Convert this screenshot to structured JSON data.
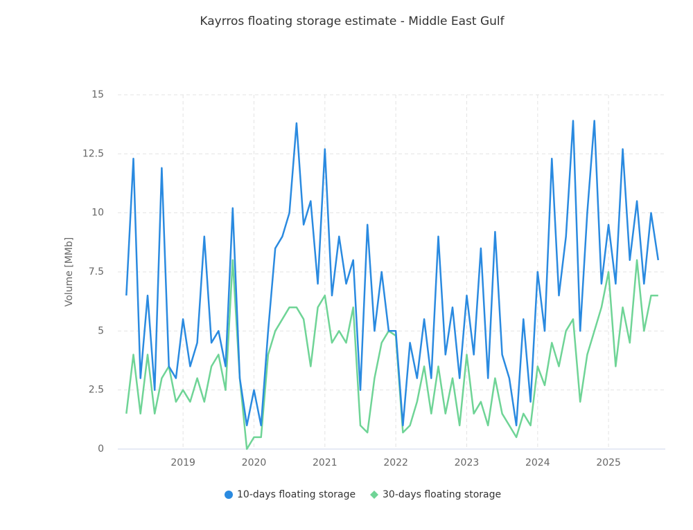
{
  "chart_data": {
    "type": "line",
    "title": "Kayrros floating storage estimate - Middle East Gulf",
    "ylabel": "Volume [MMb]",
    "x": [
      2018.2,
      2018.3,
      2018.4,
      2018.5,
      2018.6,
      2018.7,
      2018.8,
      2018.9,
      2019.0,
      2019.1,
      2019.2,
      2019.3,
      2019.4,
      2019.5,
      2019.6,
      2019.7,
      2019.8,
      2019.9,
      2020.0,
      2020.1,
      2020.2,
      2020.3,
      2020.4,
      2020.5,
      2020.6,
      2020.7,
      2020.8,
      2020.9,
      2021.0,
      2021.1,
      2021.2,
      2021.3,
      2021.4,
      2021.5,
      2021.6,
      2021.7,
      2021.8,
      2021.9,
      2022.0,
      2022.1,
      2022.2,
      2022.3,
      2022.4,
      2022.5,
      2022.6,
      2022.7,
      2022.8,
      2022.9,
      2023.0,
      2023.1,
      2023.2,
      2023.3,
      2023.4,
      2023.5,
      2023.6,
      2023.7,
      2023.8,
      2023.9,
      2024.0,
      2024.1,
      2024.2,
      2024.3,
      2024.4,
      2024.5,
      2024.6,
      2024.7,
      2024.8,
      2024.9,
      2025.0,
      2025.1,
      2025.2,
      2025.3,
      2025.4,
      2025.5,
      2025.6,
      2025.7
    ],
    "series": [
      {
        "name": "10-days floating storage",
        "color": "#2a8ae0",
        "marker": "circle",
        "values": [
          6.5,
          12.3,
          3,
          6.5,
          2.5,
          11.9,
          3.5,
          3,
          5.5,
          3.5,
          4.5,
          9.0,
          4.5,
          5,
          3.5,
          10.2,
          3,
          1,
          2.5,
          1,
          5,
          8.5,
          9,
          10,
          13.8,
          9.5,
          10.5,
          7,
          12.7,
          6.5,
          9,
          7,
          8,
          2.5,
          9.5,
          5,
          7.5,
          5,
          5,
          1,
          4.5,
          3,
          5.5,
          3,
          9,
          4,
          6,
          3,
          6.5,
          4,
          8.5,
          3,
          9.2,
          4,
          3,
          1,
          5.5,
          2,
          7.5,
          5,
          12.3,
          6.5,
          9,
          13.9,
          5,
          10,
          13.9,
          7,
          9.5,
          7,
          12.7,
          8,
          10.5,
          7,
          10,
          8
        ]
      },
      {
        "name": "30-days floating storage",
        "color": "#6fd496",
        "marker": "diamond",
        "values": [
          1.5,
          4,
          1.5,
          4,
          1.5,
          3,
          3.5,
          2,
          2.5,
          2,
          3,
          2,
          3.5,
          4,
          2.5,
          8,
          3,
          0,
          0.5,
          0.5,
          4,
          5,
          5.5,
          6,
          6,
          5.5,
          3.5,
          6,
          6.5,
          4.5,
          5,
          4.5,
          6,
          1,
          0.7,
          3,
          4.5,
          5,
          4.8,
          0.7,
          1,
          2,
          3.5,
          1.5,
          3.5,
          1.5,
          3,
          1,
          4,
          1.5,
          2,
          1,
          3,
          1.5,
          1,
          0.5,
          1.5,
          1,
          3.5,
          2.7,
          4.5,
          3.5,
          5,
          5.5,
          2,
          4,
          5,
          6,
          7.5,
          3.5,
          6,
          4.5,
          8,
          5,
          6.5,
          6.5
        ]
      }
    ],
    "xlim": [
      2018.08,
      2025.8
    ],
    "xticks": [
      2019,
      2020,
      2021,
      2022,
      2023,
      2024,
      2025
    ],
    "ylim": [
      0,
      15
    ],
    "yticks": [
      0,
      2.5,
      5,
      7.5,
      10,
      12.5,
      15
    ],
    "grid": true,
    "legend": "bottom"
  }
}
